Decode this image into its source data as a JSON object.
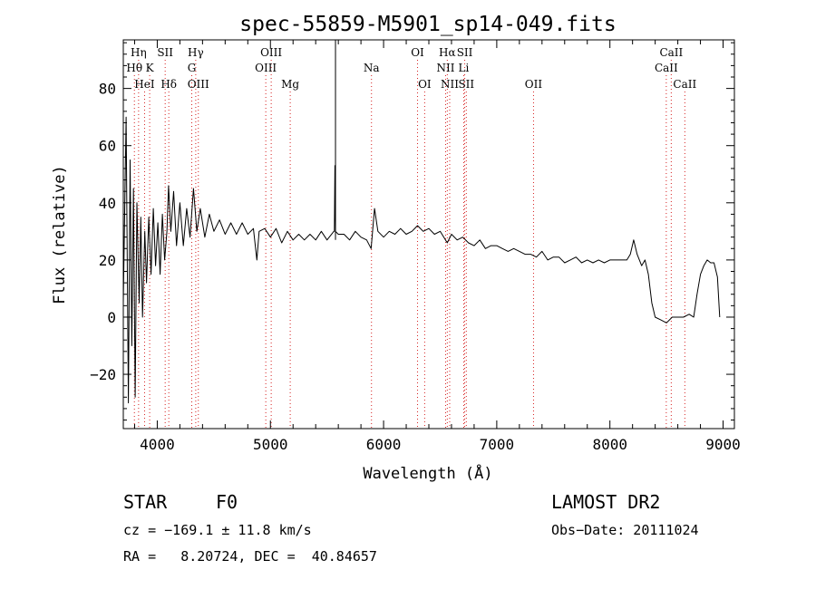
{
  "chart_data": {
    "type": "line",
    "title": "spec-55859-M5901_sp14-049.fits",
    "xlabel": "Wavelength (Å)",
    "ylabel": "Flux (relative)",
    "xlim": [
      3700,
      9100
    ],
    "ylim": [
      -39,
      97
    ],
    "x_ticks": [
      4000,
      5000,
      6000,
      7000,
      8000,
      9000
    ],
    "y_ticks": [
      -20,
      0,
      20,
      40,
      60,
      80
    ],
    "grid": false,
    "series": [
      {
        "color": "#000000",
        "points": [
          [
            3700,
            5
          ],
          [
            3725,
            70
          ],
          [
            3745,
            -30
          ],
          [
            3760,
            55
          ],
          [
            3775,
            -10
          ],
          [
            3790,
            45
          ],
          [
            3805,
            -28
          ],
          [
            3820,
            40
          ],
          [
            3840,
            5
          ],
          [
            3855,
            35
          ],
          [
            3870,
            0
          ],
          [
            3890,
            30
          ],
          [
            3905,
            12
          ],
          [
            3925,
            35
          ],
          [
            3945,
            15
          ],
          [
            3965,
            38
          ],
          [
            3985,
            18
          ],
          [
            4005,
            33
          ],
          [
            4025,
            15
          ],
          [
            4045,
            36
          ],
          [
            4065,
            20
          ],
          [
            4085,
            30
          ],
          [
            4100,
            46
          ],
          [
            4120,
            30
          ],
          [
            4145,
            44
          ],
          [
            4170,
            25
          ],
          [
            4200,
            40
          ],
          [
            4230,
            25
          ],
          [
            4260,
            38
          ],
          [
            4290,
            28
          ],
          [
            4320,
            45
          ],
          [
            4350,
            30
          ],
          [
            4380,
            38
          ],
          [
            4420,
            28
          ],
          [
            4460,
            36
          ],
          [
            4500,
            30
          ],
          [
            4550,
            34
          ],
          [
            4600,
            29
          ],
          [
            4650,
            33
          ],
          [
            4700,
            29
          ],
          [
            4750,
            33
          ],
          [
            4800,
            29
          ],
          [
            4850,
            31
          ],
          [
            4880,
            20
          ],
          [
            4900,
            30
          ],
          [
            4950,
            31
          ],
          [
            5000,
            28
          ],
          [
            5050,
            31
          ],
          [
            5100,
            26
          ],
          [
            5150,
            30
          ],
          [
            5200,
            27
          ],
          [
            5250,
            29
          ],
          [
            5300,
            27
          ],
          [
            5350,
            29
          ],
          [
            5400,
            27
          ],
          [
            5450,
            30
          ],
          [
            5500,
            27
          ],
          [
            5560,
            30
          ],
          [
            5565,
            30
          ],
          [
            5570,
            53
          ],
          [
            5575,
            30
          ],
          [
            5600,
            29
          ],
          [
            5650,
            29
          ],
          [
            5700,
            27
          ],
          [
            5750,
            30
          ],
          [
            5800,
            28
          ],
          [
            5850,
            27
          ],
          [
            5890,
            24
          ],
          [
            5920,
            38
          ],
          [
            5950,
            30
          ],
          [
            6000,
            28
          ],
          [
            6050,
            30
          ],
          [
            6100,
            29
          ],
          [
            6150,
            31
          ],
          [
            6200,
            29
          ],
          [
            6250,
            30
          ],
          [
            6300,
            32
          ],
          [
            6350,
            30
          ],
          [
            6400,
            31
          ],
          [
            6450,
            29
          ],
          [
            6500,
            30
          ],
          [
            6563,
            26
          ],
          [
            6600,
            29
          ],
          [
            6650,
            27
          ],
          [
            6700,
            28
          ],
          [
            6750,
            26
          ],
          [
            6800,
            25
          ],
          [
            6850,
            27
          ],
          [
            6900,
            24
          ],
          [
            6950,
            25
          ],
          [
            7000,
            25
          ],
          [
            7050,
            24
          ],
          [
            7100,
            23
          ],
          [
            7150,
            24
          ],
          [
            7200,
            23
          ],
          [
            7250,
            22
          ],
          [
            7300,
            22
          ],
          [
            7350,
            21
          ],
          [
            7400,
            23
          ],
          [
            7450,
            20
          ],
          [
            7500,
            21
          ],
          [
            7550,
            21
          ],
          [
            7600,
            19
          ],
          [
            7650,
            20
          ],
          [
            7700,
            21
          ],
          [
            7750,
            19
          ],
          [
            7800,
            20
          ],
          [
            7850,
            19
          ],
          [
            7900,
            20
          ],
          [
            7950,
            19
          ],
          [
            8000,
            20
          ],
          [
            8050,
            20
          ],
          [
            8100,
            20
          ],
          [
            8150,
            20
          ],
          [
            8180,
            22
          ],
          [
            8210,
            27
          ],
          [
            8240,
            22
          ],
          [
            8280,
            18
          ],
          [
            8310,
            20
          ],
          [
            8340,
            15
          ],
          [
            8370,
            5
          ],
          [
            8400,
            0
          ],
          [
            8450,
            -1
          ],
          [
            8500,
            -2
          ],
          [
            8550,
            0
          ],
          [
            8600,
            0
          ],
          [
            8650,
            0
          ],
          [
            8700,
            1
          ],
          [
            8740,
            0
          ],
          [
            8770,
            8
          ],
          [
            8800,
            15
          ],
          [
            8830,
            18
          ],
          [
            8860,
            20
          ],
          [
            8890,
            19
          ],
          [
            8920,
            19
          ],
          [
            8950,
            14
          ],
          [
            8970,
            0
          ]
        ]
      }
    ],
    "spike": {
      "x": 5575,
      "y_top": 97,
      "y_bottom": 27
    },
    "lines": [
      {
        "label": "Hη",
        "x": 3835,
        "row": 1
      },
      {
        "label": "Hθ",
        "x": 3798,
        "row": 2
      },
      {
        "label": "HeI",
        "x": 3888,
        "row": 3
      },
      {
        "label": "K",
        "x": 3933,
        "row": 2
      },
      {
        "label": "SII",
        "x": 4070,
        "row": 1
      },
      {
        "label": "Hδ",
        "x": 4102,
        "row": 3
      },
      {
        "label": "Hγ",
        "x": 4340,
        "row": 1
      },
      {
        "label": "G",
        "x": 4305,
        "row": 2
      },
      {
        "label": "OIII",
        "x": 4363,
        "row": 3
      },
      {
        "label": "OIII",
        "x": 5007,
        "row": 1
      },
      {
        "label": "OIII",
        "x": 4959,
        "row": 2
      },
      {
        "label": "Mg",
        "x": 5175,
        "row": 3
      },
      {
        "label": "Na",
        "x": 5893,
        "row": 2
      },
      {
        "label": "OI",
        "x": 6300,
        "row": 1
      },
      {
        "label": "OI",
        "x": 6363,
        "row": 3
      },
      {
        "label": "Hα",
        "x": 6563,
        "row": 1
      },
      {
        "label": "NII",
        "x": 6548,
        "row": 2
      },
      {
        "label": "NII",
        "x": 6584,
        "row": 3
      },
      {
        "label": "SII",
        "x": 6717,
        "row": 1
      },
      {
        "label": "Li",
        "x": 6708,
        "row": 2
      },
      {
        "label": "SII",
        "x": 6731,
        "row": 3
      },
      {
        "label": "OII",
        "x": 7325,
        "row": 3
      },
      {
        "label": "CaII",
        "x": 8542,
        "row": 1
      },
      {
        "label": "CaII",
        "x": 8498,
        "row": 2
      },
      {
        "label": "CaII",
        "x": 8662,
        "row": 3
      }
    ]
  },
  "info": {
    "class": "STAR",
    "subclass": "F0",
    "survey": "LAMOST DR2",
    "cz": "cz = −169.1 ± 11.8 km/s",
    "obsdate": "Obs−Date: 20111024",
    "radec": "RA =   8.20724, DEC =  40.84657"
  }
}
